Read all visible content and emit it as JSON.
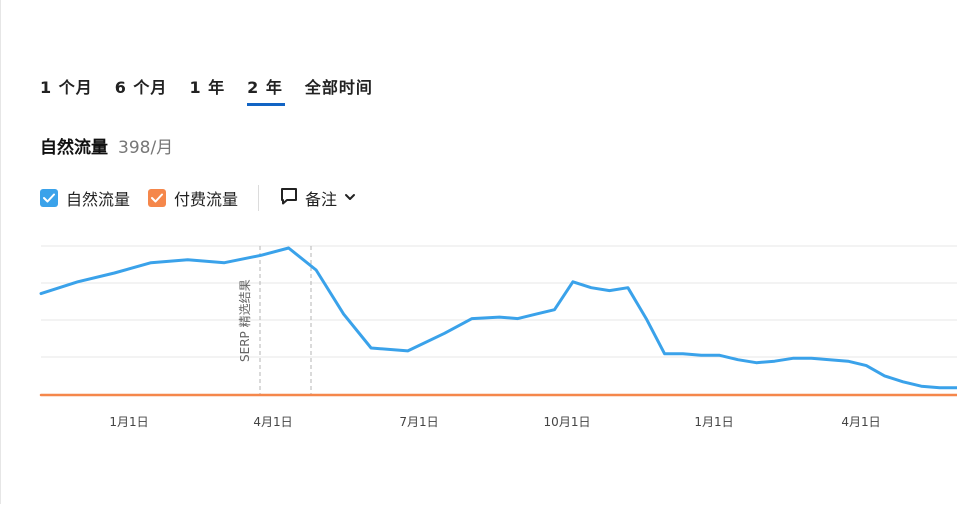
{
  "tabs": [
    {
      "label": "1 个月"
    },
    {
      "label": "6 个月"
    },
    {
      "label": "1 年"
    },
    {
      "label": "2 年",
      "active": true
    },
    {
      "label": "全部时间"
    }
  ],
  "metric": {
    "title": "自然流量",
    "value": "398/月"
  },
  "legend": {
    "organic": {
      "label": "自然流量",
      "checked": true,
      "color": "#3aa2ea"
    },
    "paid": {
      "label": "付费流量",
      "checked": true,
      "color": "#f5874b"
    },
    "notes_label": "备注"
  },
  "chart_data": {
    "type": "line",
    "x_tick_labels": [
      "1月1日",
      "4月1日",
      "7月1日",
      "10月1日",
      "1月1日",
      "4月1日"
    ],
    "grid": true,
    "annotations": [
      {
        "label": "SERP 精选结果"
      }
    ],
    "series": [
      {
        "name": "自然流量",
        "color": "#3aa2ea",
        "x": [
          0,
          4,
          8,
          12,
          16,
          20,
          24,
          27,
          30,
          33,
          36,
          40,
          44,
          47,
          50,
          52,
          54,
          56,
          58,
          60,
          62,
          64,
          66,
          68,
          70,
          72,
          74,
          76,
          78,
          80,
          82,
          84,
          86,
          88,
          90,
          92,
          94,
          96,
          98,
          100
        ],
        "values": [
          0.69,
          0.77,
          0.83,
          0.9,
          0.92,
          0.9,
          0.95,
          1.0,
          0.85,
          0.55,
          0.32,
          0.3,
          0.42,
          0.52,
          0.53,
          0.52,
          0.55,
          0.58,
          0.77,
          0.73,
          0.71,
          0.73,
          0.52,
          0.28,
          0.28,
          0.27,
          0.27,
          0.24,
          0.22,
          0.23,
          0.25,
          0.25,
          0.24,
          0.23,
          0.2,
          0.13,
          0.09,
          0.06,
          0.05,
          0.05
        ]
      },
      {
        "name": "付费流量",
        "color": "#f5874b",
        "x": [
          0,
          100
        ],
        "values": [
          0,
          0
        ]
      }
    ]
  }
}
